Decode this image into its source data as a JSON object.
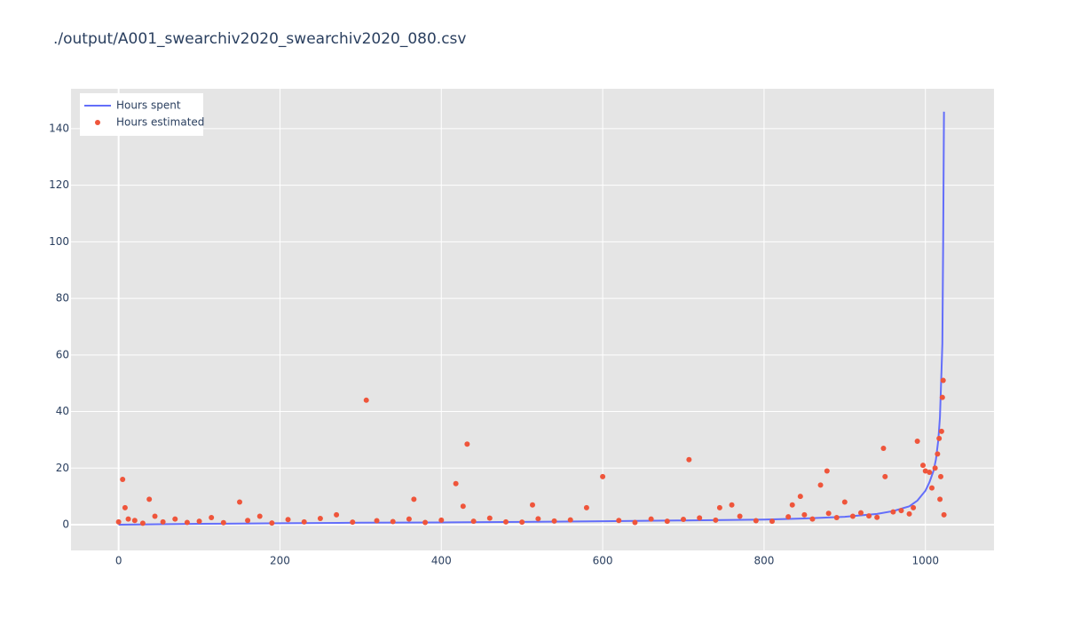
{
  "chart_data": {
    "type": "line-scatter",
    "title": "./output/A001_swearchiv2020_swearchiv2020_080.csv",
    "series": [
      {
        "name": "Hours spent",
        "type": "line",
        "color": "#636efa",
        "x": [
          0,
          100,
          200,
          300,
          400,
          500,
          600,
          700,
          800,
          850,
          900,
          940,
          960,
          980,
          990,
          1000,
          1005,
          1010,
          1013,
          1016,
          1018,
          1020,
          1021,
          1022,
          1023
        ],
        "values": [
          0,
          0.3,
          0.5,
          0.7,
          0.8,
          1,
          1.2,
          1.5,
          1.8,
          2.2,
          2.8,
          3.8,
          4.8,
          6.5,
          8.5,
          12,
          15,
          19,
          23,
          30,
          38,
          55,
          64,
          100,
          146
        ]
      },
      {
        "name": "Hours estimated",
        "type": "scatter",
        "color": "#ef553b",
        "x": [
          0,
          12,
          20,
          30,
          45,
          55,
          70,
          85,
          100,
          115,
          130,
          160,
          175,
          190,
          210,
          230,
          250,
          270,
          290,
          320,
          340,
          360,
          380,
          400,
          440,
          460,
          480,
          500,
          520,
          540,
          560,
          620,
          640,
          660,
          680,
          700,
          720,
          740,
          770,
          790,
          810,
          830,
          850,
          860,
          880,
          890,
          910,
          920,
          930,
          940,
          960,
          970,
          980,
          985,
          5,
          8,
          38,
          150,
          307,
          366,
          418,
          427,
          432,
          513,
          580,
          600,
          707,
          745,
          760,
          835,
          845,
          870,
          878,
          900,
          948,
          950,
          990,
          997,
          1000,
          1005,
          1008,
          1012,
          1015,
          1017,
          1018,
          1019,
          1020,
          1021,
          1022,
          1023
        ],
        "values": [
          1,
          2,
          1.5,
          0.5,
          3,
          1,
          2,
          0.8,
          1.2,
          2.5,
          0.7,
          1.5,
          3,
          0.6,
          1.8,
          1,
          2.2,
          3.5,
          0.9,
          1.4,
          1.1,
          2,
          0.8,
          1.6,
          1.2,
          2.3,
          1,
          0.9,
          2.1,
          1.3,
          1.7,
          1.5,
          0.8,
          2,
          1.2,
          1.9,
          2.4,
          1.6,
          3,
          1.4,
          1.2,
          2.8,
          3.5,
          2,
          4,
          2.5,
          3,
          4.2,
          3.1,
          2.6,
          4.5,
          5,
          3.8,
          6,
          16,
          6,
          9,
          8,
          44,
          9,
          14.5,
          6.5,
          28.5,
          7,
          6,
          17,
          23,
          6,
          7,
          7,
          10,
          14,
          19,
          8,
          27,
          17,
          29.5,
          21,
          19,
          18.5,
          13,
          20,
          25,
          30.5,
          9,
          17,
          33,
          45,
          51,
          3.5
        ]
      }
    ],
    "xlim": [
      -59,
      1085
    ],
    "xticks": [
      0,
      200,
      400,
      600,
      800,
      1000
    ],
    "ylim": [
      -9.1,
      154.1
    ],
    "yticks": [
      0,
      20,
      40,
      60,
      80,
      100,
      120,
      140
    ],
    "grid": true,
    "legend": "top-left"
  }
}
